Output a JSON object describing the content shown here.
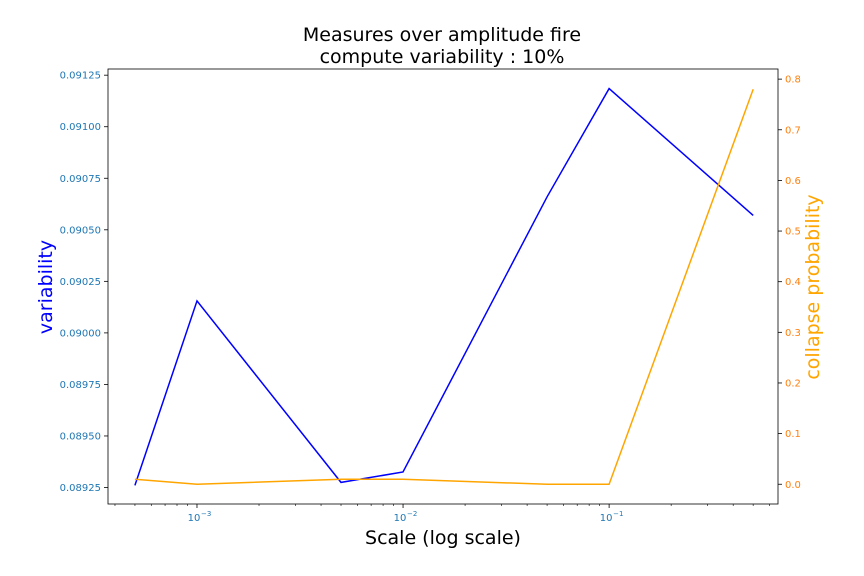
{
  "chart_data": {
    "type": "line",
    "title_line1": "Measures over amplitude fire",
    "title_line2": "compute variability : 10%",
    "xlabel": "Scale (log scale)",
    "x_scale": "log",
    "xlim": [
      0.00037,
      0.66
    ],
    "x": [
      0.0005,
      0.001,
      0.005,
      0.01,
      0.05,
      0.1,
      0.5
    ],
    "x_ticks": [
      {
        "base": "10",
        "exp": "−3",
        "value": 0.001
      },
      {
        "base": "10",
        "exp": "−2",
        "value": 0.01
      },
      {
        "base": "10",
        "exp": "−1",
        "value": 0.1
      }
    ],
    "left_axis": {
      "label": "variability",
      "color": "#0000ff",
      "tick_color": "#1f77b4",
      "ylim": [
        0.08917,
        0.09128
      ],
      "ticks": [
        "0.08925",
        "0.08950",
        "0.08975",
        "0.09000",
        "0.09025",
        "0.09050",
        "0.09075",
        "0.09100",
        "0.09125"
      ],
      "values": [
        0.08926,
        0.090155,
        0.089275,
        0.089325,
        0.09066,
        0.091185,
        0.09057
      ]
    },
    "right_axis": {
      "label": "collapse probability",
      "color": "#ffa500",
      "tick_color": "#ff7f0e",
      "ylim": [
        -0.039,
        0.82
      ],
      "ticks": [
        "0.0",
        "0.1",
        "0.2",
        "0.3",
        "0.4",
        "0.5",
        "0.6",
        "0.7",
        "0.8"
      ],
      "values": [
        0.01,
        0.0,
        0.01,
        0.01,
        0.0,
        0.0,
        0.78
      ]
    }
  }
}
